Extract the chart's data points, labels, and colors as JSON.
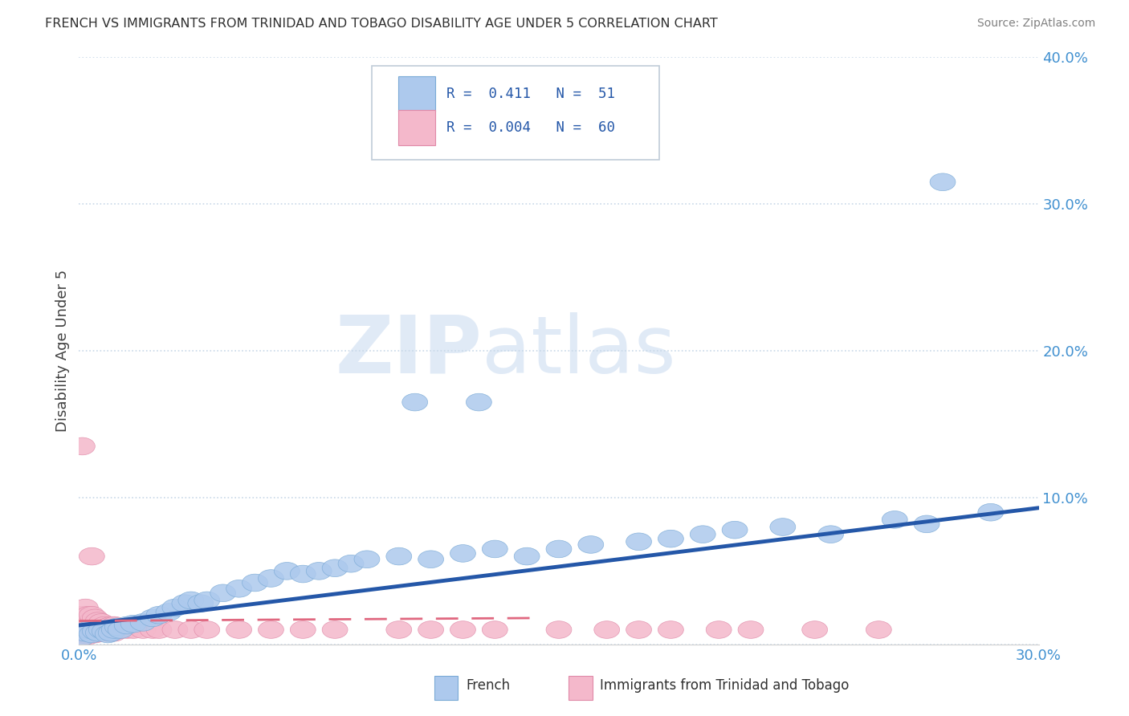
{
  "title": "FRENCH VS IMMIGRANTS FROM TRINIDAD AND TOBAGO DISABILITY AGE UNDER 5 CORRELATION CHART",
  "source": "Source: ZipAtlas.com",
  "ylabel_label": "Disability Age Under 5",
  "xlim": [
    0.0,
    0.3
  ],
  "ylim": [
    0.0,
    0.4
  ],
  "xticks": [
    0.0,
    0.05,
    0.1,
    0.15,
    0.2,
    0.25,
    0.3
  ],
  "yticks": [
    0.0,
    0.1,
    0.2,
    0.3,
    0.4
  ],
  "french_R": "0.411",
  "french_N": "51",
  "immigrants_R": "0.004",
  "immigrants_N": "60",
  "french_color": "#adc9ed",
  "french_edge_color": "#7aaad6",
  "french_line_color": "#2457a8",
  "immigrants_color": "#f4b8cb",
  "immigrants_edge_color": "#e08aa8",
  "immigrants_line_color": "#e06880",
  "legend_label_french": "French",
  "legend_label_immigrants": "Immigrants from Trinidad and Tobago",
  "watermark_zip": "ZIP",
  "watermark_atlas": "atlas",
  "background_color": "#ffffff",
  "grid_color": "#c8d8e8",
  "tick_color": "#4090d0",
  "french_line_start_x": 0.0,
  "french_line_start_y": 0.013,
  "french_line_end_x": 0.3,
  "french_line_end_y": 0.093,
  "immigrants_line_start_x": 0.0,
  "immigrants_line_start_y": 0.016,
  "immigrants_line_end_x": 0.145,
  "immigrants_line_end_y": 0.018,
  "french_x": [
    0.001,
    0.002,
    0.003,
    0.004,
    0.005,
    0.006,
    0.007,
    0.008,
    0.009,
    0.01,
    0.011,
    0.012,
    0.013,
    0.015,
    0.017,
    0.02,
    0.023,
    0.025,
    0.028,
    0.03,
    0.033,
    0.035,
    0.038,
    0.04,
    0.045,
    0.05,
    0.055,
    0.06,
    0.065,
    0.07,
    0.075,
    0.08,
    0.085,
    0.09,
    0.1,
    0.105,
    0.11,
    0.12,
    0.13,
    0.14,
    0.15,
    0.16,
    0.175,
    0.185,
    0.195,
    0.205,
    0.22,
    0.235,
    0.255,
    0.265,
    0.285
  ],
  "french_y": [
    0.005,
    0.008,
    0.01,
    0.007,
    0.009,
    0.008,
    0.01,
    0.009,
    0.007,
    0.008,
    0.01,
    0.012,
    0.01,
    0.013,
    0.014,
    0.015,
    0.018,
    0.02,
    0.022,
    0.025,
    0.028,
    0.03,
    0.028,
    0.03,
    0.035,
    0.038,
    0.042,
    0.045,
    0.05,
    0.048,
    0.05,
    0.052,
    0.055,
    0.058,
    0.06,
    0.165,
    0.058,
    0.062,
    0.065,
    0.06,
    0.065,
    0.068,
    0.07,
    0.072,
    0.075,
    0.078,
    0.08,
    0.075,
    0.085,
    0.082,
    0.09
  ],
  "immigrants_x": [
    0.001,
    0.001,
    0.001,
    0.001,
    0.002,
    0.002,
    0.002,
    0.002,
    0.003,
    0.003,
    0.003,
    0.003,
    0.004,
    0.004,
    0.004,
    0.004,
    0.005,
    0.005,
    0.005,
    0.005,
    0.006,
    0.006,
    0.006,
    0.007,
    0.007,
    0.007,
    0.008,
    0.008,
    0.009,
    0.009,
    0.01,
    0.01,
    0.011,
    0.011,
    0.012,
    0.013,
    0.015,
    0.017,
    0.02,
    0.023,
    0.025,
    0.03,
    0.035,
    0.04,
    0.05,
    0.06,
    0.07,
    0.08,
    0.1,
    0.11,
    0.12,
    0.13,
    0.15,
    0.165,
    0.175,
    0.185,
    0.2,
    0.21,
    0.23,
    0.25
  ],
  "immigrants_y": [
    0.005,
    0.01,
    0.015,
    0.02,
    0.008,
    0.012,
    0.018,
    0.025,
    0.006,
    0.01,
    0.015,
    0.02,
    0.008,
    0.012,
    0.016,
    0.02,
    0.007,
    0.01,
    0.014,
    0.018,
    0.008,
    0.012,
    0.016,
    0.008,
    0.012,
    0.015,
    0.008,
    0.013,
    0.008,
    0.012,
    0.008,
    0.013,
    0.008,
    0.013,
    0.01,
    0.01,
    0.01,
    0.01,
    0.01,
    0.01,
    0.01,
    0.01,
    0.01,
    0.01,
    0.01,
    0.01,
    0.01,
    0.01,
    0.01,
    0.01,
    0.01,
    0.01,
    0.01,
    0.01,
    0.01,
    0.01,
    0.01,
    0.01,
    0.01,
    0.01
  ],
  "outlier_immigrants_x": [
    0.001
  ],
  "outlier_immigrants_y": [
    0.135
  ],
  "outlier_immigrants2_x": [
    0.004
  ],
  "outlier_immigrants2_y": [
    0.06
  ],
  "outlier_french_x": [
    0.27
  ],
  "outlier_french_y": [
    0.315
  ],
  "outlier_french2_x": [
    0.125
  ],
  "outlier_french2_y": [
    0.165
  ]
}
